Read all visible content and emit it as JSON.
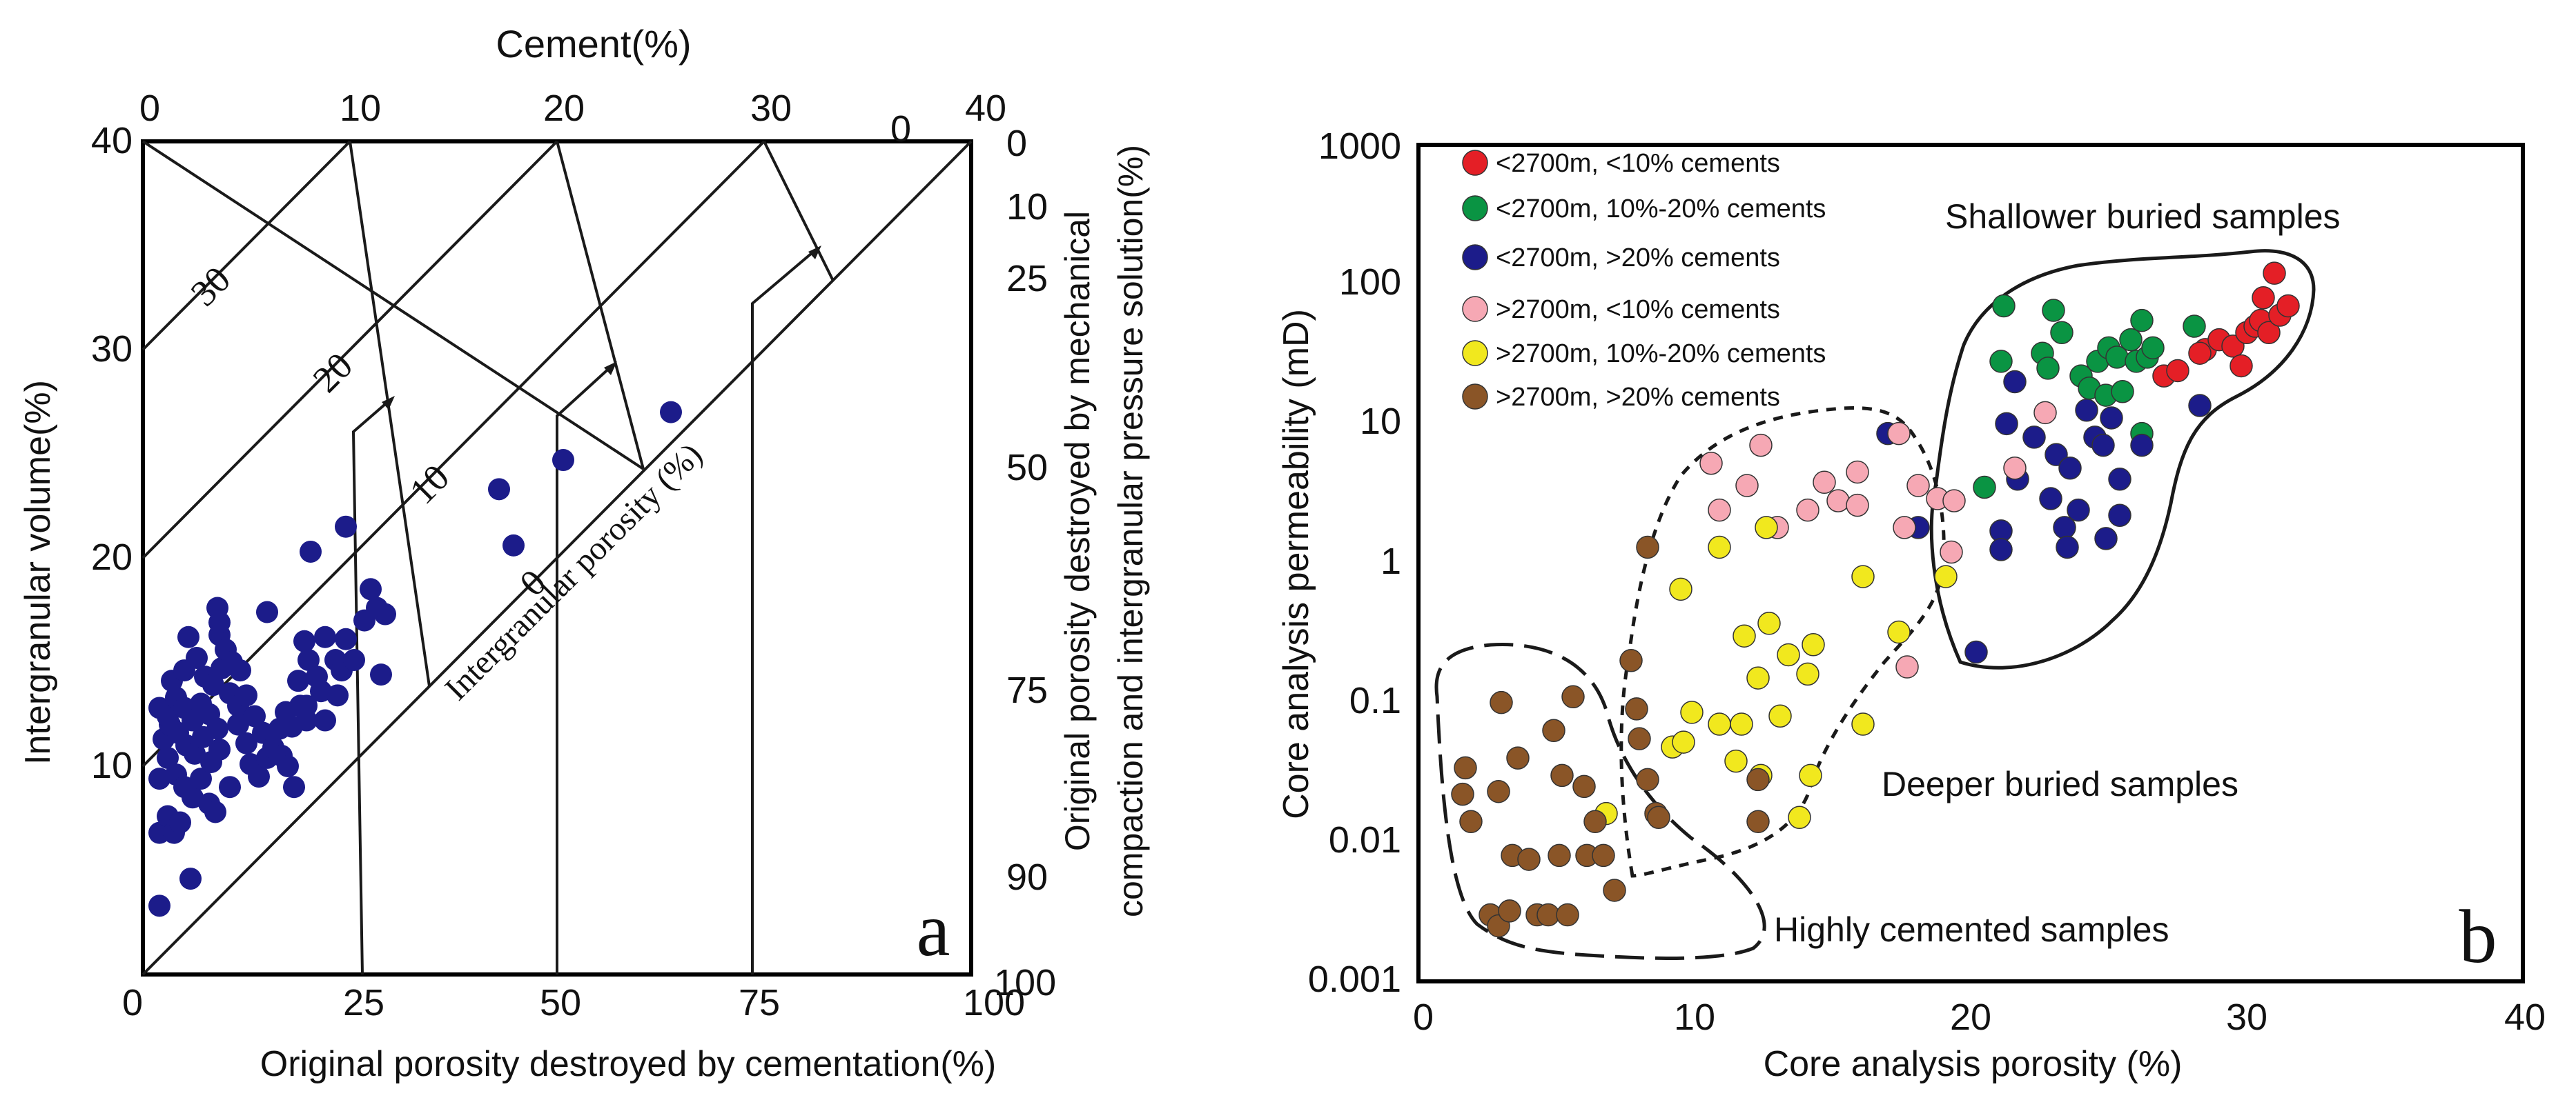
{
  "chart_data": [
    {
      "panel_label": "a",
      "type": "scatter",
      "title": "Cement(%)",
      "xlabel": "Original  porosity destroyed by cementation(%)",
      "ylabel": "Intergranular  volume(%)",
      "y2label_line1": "Original porosity destroyed by mechanical",
      "y2label_line2": "compaction and intergranular pressure solution(%)",
      "xlim": [
        0,
        40
      ],
      "ylim": [
        0,
        40
      ],
      "bottom_tick_labels": [
        "0",
        "25",
        "50",
        "75",
        "100"
      ],
      "left_tick_labels": [
        "10",
        "20",
        "30",
        "40"
      ],
      "top_tick_labels": [
        "0",
        "10",
        "20",
        "30",
        "40"
      ],
      "right_tick_labels": [
        "0",
        "10",
        "25",
        "50",
        "75",
        "90",
        "100"
      ],
      "porosity_contour_labels": [
        "30",
        "20",
        "10",
        "0"
      ],
      "cement_zero_label": "0",
      "diagonal_label": "Intergranular  porosity (%)",
      "point_color": "#1c1c8a",
      "series": [
        {
          "name": "samples",
          "points": [
            [
              0.8,
              3.3
            ],
            [
              0.8,
              6.8
            ],
            [
              1.2,
              7.6
            ],
            [
              1.5,
              6.8
            ],
            [
              1.8,
              7.3
            ],
            [
              2.3,
              4.6
            ],
            [
              0.8,
              9.4
            ],
            [
              1.2,
              10.4
            ],
            [
              1.6,
              9.6
            ],
            [
              2.0,
              9.0
            ],
            [
              2.4,
              8.5
            ],
            [
              2.8,
              9.4
            ],
            [
              3.2,
              8.2
            ],
            [
              3.5,
              7.8
            ],
            [
              1.0,
              11.3
            ],
            [
              1.3,
              12.0
            ],
            [
              1.7,
              11.6
            ],
            [
              2.1,
              11.0
            ],
            [
              2.5,
              10.6
            ],
            [
              2.9,
              11.4
            ],
            [
              3.3,
              10.2
            ],
            [
              3.7,
              10.8
            ],
            [
              0.8,
              12.8
            ],
            [
              1.2,
              12.4
            ],
            [
              1.6,
              13.3
            ],
            [
              2.0,
              12.8
            ],
            [
              2.4,
              12.2
            ],
            [
              2.8,
              13.0
            ],
            [
              3.2,
              12.5
            ],
            [
              3.6,
              11.8
            ],
            [
              1.4,
              14.1
            ],
            [
              2.0,
              14.6
            ],
            [
              2.6,
              15.2
            ],
            [
              3.0,
              14.3
            ],
            [
              3.4,
              13.9
            ],
            [
              3.8,
              14.7
            ],
            [
              4.2,
              13.5
            ],
            [
              4.6,
              12.9
            ],
            [
              2.2,
              16.2
            ],
            [
              3.7,
              16.3
            ],
            [
              4.0,
              15.6
            ],
            [
              4.3,
              15.0
            ],
            [
              4.7,
              14.6
            ],
            [
              5.0,
              13.4
            ],
            [
              5.4,
              12.4
            ],
            [
              5.8,
              11.6
            ],
            [
              4.6,
              12.0
            ],
            [
              5.0,
              11.1
            ],
            [
              5.2,
              10.1
            ],
            [
              5.6,
              9.5
            ],
            [
              6.0,
              10.4
            ],
            [
              6.3,
              10.9
            ],
            [
              6.6,
              11.8
            ],
            [
              6.9,
              12.6
            ],
            [
              7.2,
              11.9
            ],
            [
              6.7,
              10.5
            ],
            [
              7.0,
              10.0
            ],
            [
              7.3,
              9.0
            ],
            [
              4.2,
              9.0
            ],
            [
              3.7,
              16.9
            ],
            [
              3.6,
              17.6
            ],
            [
              6.0,
              17.4
            ],
            [
              7.6,
              12.9
            ],
            [
              7.9,
              12.2
            ],
            [
              7.5,
              14.1
            ],
            [
              8.0,
              15.1
            ],
            [
              8.4,
              14.3
            ],
            [
              8.6,
              13.6
            ],
            [
              7.8,
              16.0
            ],
            [
              8.8,
              16.2
            ],
            [
              9.3,
              15.1
            ],
            [
              7.9,
              12.9
            ],
            [
              8.8,
              12.2
            ],
            [
              9.4,
              13.4
            ],
            [
              9.6,
              14.6
            ],
            [
              9.8,
              16.1
            ],
            [
              10.2,
              15.1
            ],
            [
              10.7,
              17.0
            ],
            [
              11.3,
              17.6
            ],
            [
              11.0,
              18.5
            ],
            [
              11.7,
              17.3
            ],
            [
              11.5,
              14.4
            ],
            [
              8.1,
              20.3
            ],
            [
              9.8,
              21.5
            ],
            [
              17.2,
              23.3
            ],
            [
              17.9,
              20.6
            ],
            [
              20.3,
              24.7
            ],
            [
              25.5,
              27.0
            ]
          ]
        }
      ]
    },
    {
      "panel_label": "b",
      "type": "scatter",
      "xlabel": "Core analysis  porosity (%)",
      "ylabel": "Core analysis  permeability (mD)",
      "xlim": [
        0,
        40
      ],
      "ylim": [
        0.001,
        1000
      ],
      "yscale": "log",
      "x_tick_labels": [
        "0",
        "10",
        "20",
        "30",
        "40"
      ],
      "y_tick_labels": [
        "0.001",
        "0.01",
        "0.1",
        "1",
        "10",
        "100",
        "1000"
      ],
      "region_labels": [
        "Shallower buried samples",
        "Deeper buried samples",
        "Highly cemented samples"
      ],
      "series": [
        {
          "name": "<2700m, <10% cements",
          "color": "#e41f26",
          "points": [
            [
              27,
              22
            ],
            [
              27.5,
              24
            ],
            [
              28.5,
              34
            ],
            [
              29,
              40
            ],
            [
              29.5,
              36
            ],
            [
              30,
              45
            ],
            [
              30.3,
              50
            ],
            [
              30.5,
              55
            ],
            [
              30.6,
              80
            ],
            [
              30.8,
              45
            ],
            [
              31,
              120
            ],
            [
              31.2,
              60
            ],
            [
              31.5,
              70
            ],
            [
              29.8,
              26
            ],
            [
              28.3,
              32
            ]
          ]
        },
        {
          "name": "<2700m, 10%-20% cements",
          "color": "#0a9443",
          "points": [
            [
              21.2,
              70
            ],
            [
              21.1,
              28
            ],
            [
              22.6,
              32
            ],
            [
              22.8,
              25
            ],
            [
              23.0,
              65
            ],
            [
              23.3,
              45
            ],
            [
              24.0,
              22
            ],
            [
              24.3,
              18
            ],
            [
              24.6,
              28
            ],
            [
              24.9,
              16
            ],
            [
              25.0,
              35
            ],
            [
              25.3,
              30
            ],
            [
              25.5,
              17
            ],
            [
              25.8,
              40
            ],
            [
              26.0,
              28
            ],
            [
              26.2,
              55
            ],
            [
              26.4,
              30
            ],
            [
              26.6,
              35
            ],
            [
              28.1,
              50
            ],
            [
              20.5,
              3.5
            ],
            [
              26.2,
              8.5
            ]
          ]
        },
        {
          "name": "<2700m, >20% cements",
          "color": "#1c1c8a",
          "points": [
            [
              17.0,
              8.5
            ],
            [
              21.1,
              1.7
            ],
            [
              21.1,
              1.25
            ],
            [
              21.3,
              10
            ],
            [
              21.6,
              20
            ],
            [
              21.7,
              4.0
            ],
            [
              22.3,
              8
            ],
            [
              22.9,
              2.9
            ],
            [
              23.1,
              6.0
            ],
            [
              23.4,
              1.8
            ],
            [
              23.6,
              4.8
            ],
            [
              23.5,
              1.3
            ],
            [
              23.9,
              2.4
            ],
            [
              24.2,
              12.5
            ],
            [
              24.5,
              8
            ],
            [
              24.8,
              7
            ],
            [
              24.9,
              1.5
            ],
            [
              25.1,
              11
            ],
            [
              25.4,
              2.2
            ],
            [
              25.4,
              4.0
            ],
            [
              26.2,
              7.0
            ],
            [
              28.3,
              13.5
            ],
            [
              20.2,
              0.23
            ],
            [
              18.1,
              1.8
            ]
          ]
        },
        {
          "name": ">2700m, <10% cements",
          "color": "#f6a8b4",
          "points": [
            [
              10.6,
              5.2
            ],
            [
              10.9,
              2.4
            ],
            [
              11.9,
              3.6
            ],
            [
              12.4,
              7.0
            ],
            [
              13.0,
              1.8
            ],
            [
              14.1,
              2.4
            ],
            [
              14.7,
              3.8
            ],
            [
              15.2,
              2.8
            ],
            [
              15.9,
              2.6
            ],
            [
              15.9,
              4.5
            ],
            [
              17.4,
              8.5
            ],
            [
              17.6,
              1.8
            ],
            [
              17.7,
              0.18
            ],
            [
              18.1,
              3.6
            ],
            [
              18.8,
              2.9
            ],
            [
              19.4,
              2.8
            ],
            [
              19.3,
              1.2
            ],
            [
              21.6,
              4.8
            ],
            [
              22.7,
              12
            ]
          ]
        },
        {
          "name": ">2700m, 10%-20% cements",
          "color": "#f1e81e",
          "points": [
            [
              6.8,
              0.016
            ],
            [
              9.2,
              0.048
            ],
            [
              9.6,
              0.052
            ],
            [
              9.5,
              0.65
            ],
            [
              9.9,
              0.085
            ],
            [
              10.9,
              0.07
            ],
            [
              10.9,
              1.3
            ],
            [
              11.5,
              0.038
            ],
            [
              11.7,
              0.07
            ],
            [
              11.8,
              0.3
            ],
            [
              12.3,
              0.15
            ],
            [
              12.6,
              1.8
            ],
            [
              12.7,
              0.37
            ],
            [
              13.1,
              0.08
            ],
            [
              13.4,
              0.22
            ],
            [
              13.8,
              0.015
            ],
            [
              14.1,
              0.16
            ],
            [
              14.2,
              0.03
            ],
            [
              14.3,
              0.26
            ],
            [
              16.1,
              0.8
            ],
            [
              16.1,
              0.07
            ],
            [
              17.4,
              0.32
            ],
            [
              19.1,
              0.8
            ],
            [
              12.4,
              0.03
            ]
          ]
        },
        {
          "name": ">2700m, >20% cements",
          "color": "#8a5527",
          "points": [
            [
              1.7,
              0.034
            ],
            [
              1.6,
              0.022
            ],
            [
              1.9,
              0.014
            ],
            [
              2.6,
              0.003
            ],
            [
              2.9,
              0.0025
            ],
            [
              3.3,
              0.0032
            ],
            [
              2.9,
              0.023
            ],
            [
              3.0,
              0.1
            ],
            [
              3.4,
              0.008
            ],
            [
              3.6,
              0.04
            ],
            [
              4.0,
              0.0075
            ],
            [
              4.3,
              0.003
            ],
            [
              4.7,
              0.003
            ],
            [
              4.9,
              0.063
            ],
            [
              5.1,
              0.008
            ],
            [
              5.2,
              0.03
            ],
            [
              5.4,
              0.003
            ],
            [
              5.6,
              0.11
            ],
            [
              6.0,
              0.025
            ],
            [
              6.1,
              0.008
            ],
            [
              6.4,
              0.014
            ],
            [
              6.7,
              0.008
            ],
            [
              7.1,
              0.0045
            ],
            [
              7.7,
              0.2
            ],
            [
              7.9,
              0.09
            ],
            [
              8.0,
              0.055
            ],
            [
              8.3,
              1.3
            ],
            [
              8.3,
              0.028
            ],
            [
              8.6,
              0.016
            ],
            [
              8.7,
              0.015
            ],
            [
              12.3,
              0.028
            ],
            [
              12.3,
              0.014
            ]
          ]
        }
      ]
    }
  ]
}
